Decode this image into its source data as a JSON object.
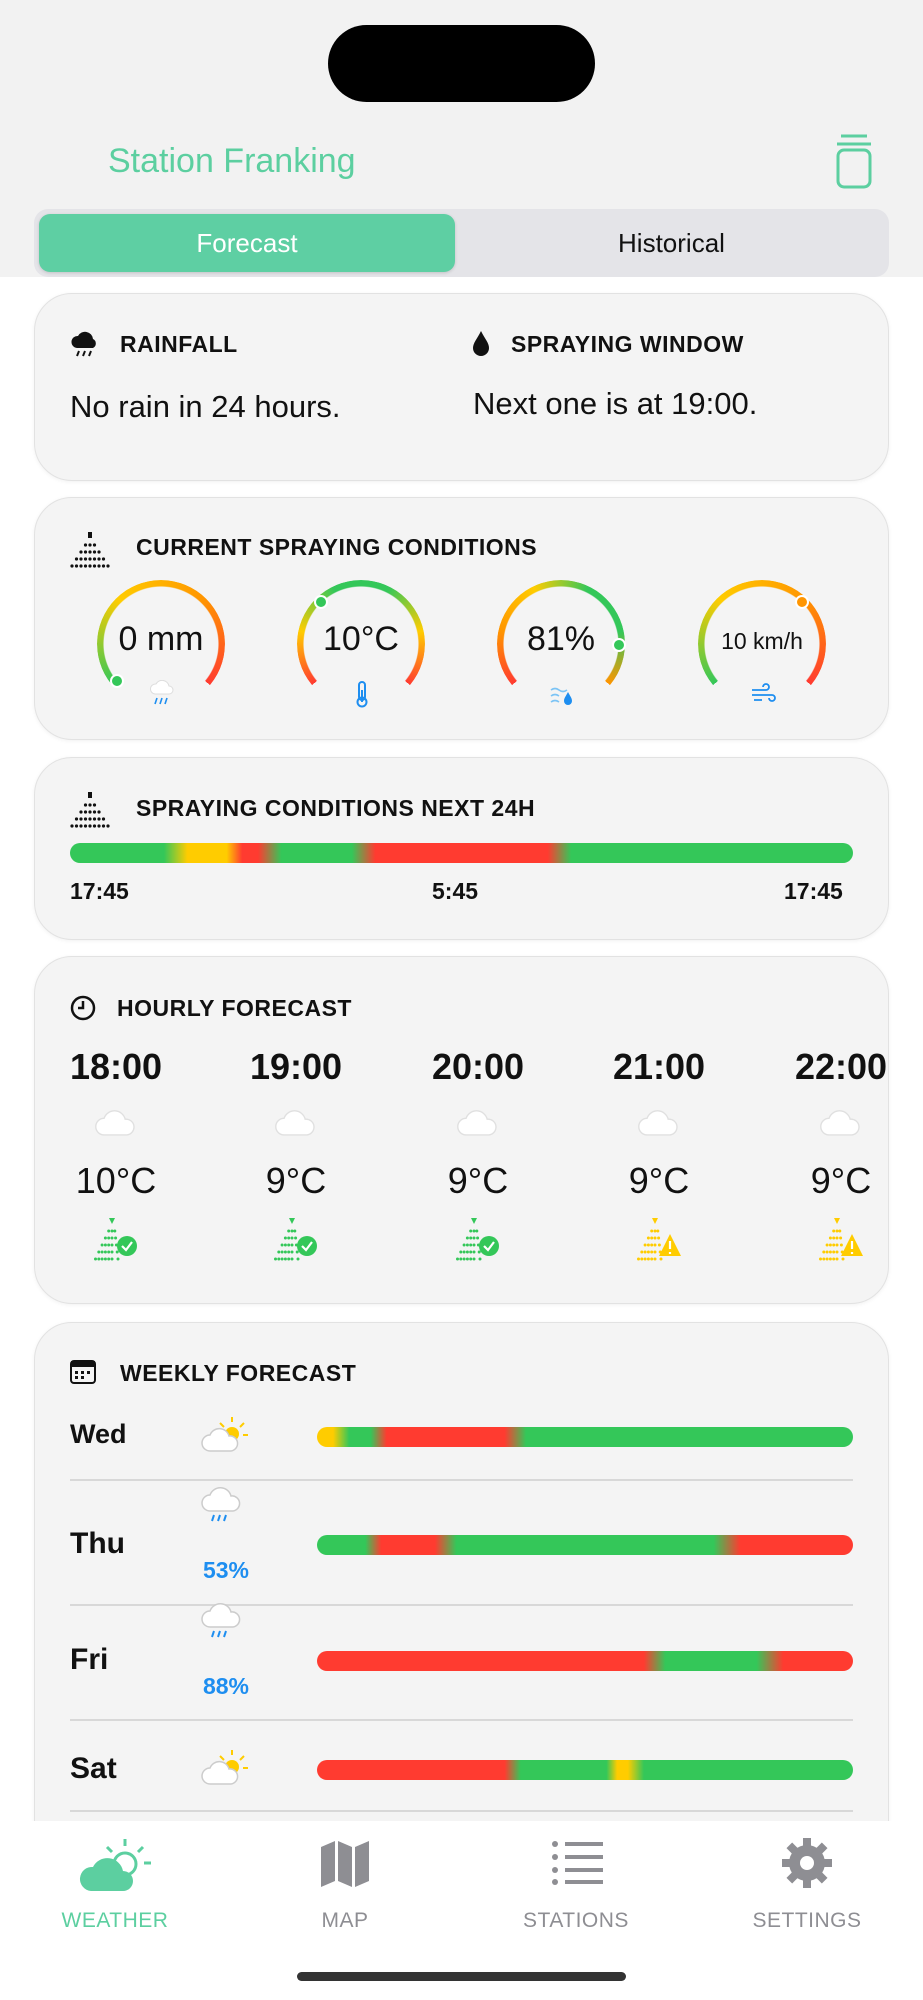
{
  "header": {
    "title": "Station Franking",
    "trash_icon": "trash-icon"
  },
  "segments": {
    "forecast": "Forecast",
    "historical": "Historical",
    "selected": "Forecast"
  },
  "colors": {
    "accent": "#5ecfa3",
    "good": "#34c759",
    "warn": "#ffcc00",
    "caution": "#ff9500",
    "bad": "#ff3b30",
    "rain": "#1e8ef0"
  },
  "rainfall": {
    "label": "RAINFALL",
    "value": "No rain in 24 hours."
  },
  "spraying_window": {
    "label": "SPRAYING WINDOW",
    "value": "Next one is at 19:00."
  },
  "current": {
    "label": "CURRENT SPRAYING CONDITIONS",
    "gauges": [
      {
        "value": "0 mm",
        "icon": "rain-icon",
        "level": 0.0,
        "colors": [
          "#34c759",
          "#ffcc00",
          "#ff9500",
          "#ff3b30"
        ]
      },
      {
        "value": "10°C",
        "icon": "thermometer-icon",
        "level": 0.33,
        "colors": [
          "#ff3b30",
          "#ffcc00",
          "#34c759",
          "#34c759",
          "#ffcc00",
          "#ff3b30"
        ]
      },
      {
        "value": "81%",
        "icon": "humidity-icon",
        "level": 0.85,
        "colors": [
          "#ff3b30",
          "#ff9500",
          "#ffcc00",
          "#34c759",
          "#34c759",
          "#ff9500"
        ]
      },
      {
        "value": "10 km/h",
        "icon": "wind-icon",
        "level": 0.67,
        "colors": [
          "#34c759",
          "#ffcc00",
          "#ff9500",
          "#ff3b30"
        ]
      }
    ]
  },
  "next24": {
    "label": "SPRAYING CONDITIONS NEXT 24H",
    "start": "17:45",
    "middle": "5:45",
    "end": "17:45",
    "segments": [
      [
        "good",
        0,
        12
      ],
      [
        "warn",
        15,
        20
      ],
      [
        "bad",
        22,
        24
      ],
      [
        "good",
        27,
        36
      ],
      [
        "bad",
        39,
        61
      ],
      [
        "good",
        64,
        100
      ]
    ]
  },
  "hourly": {
    "label": "HOURLY FORECAST",
    "items": [
      {
        "time": "18:00",
        "temp": "10°C",
        "weather": "cloud-icon",
        "status": "good"
      },
      {
        "time": "19:00",
        "temp": "9°C",
        "weather": "cloud-icon",
        "status": "good"
      },
      {
        "time": "20:00",
        "temp": "9°C",
        "weather": "cloud-icon",
        "status": "good"
      },
      {
        "time": "21:00",
        "temp": "9°C",
        "weather": "cloud-icon",
        "status": "warn"
      },
      {
        "time": "22:00",
        "temp": "9°C",
        "weather": "cloud-icon",
        "status": "warn"
      }
    ]
  },
  "weekly": {
    "label": "WEEKLY FORECAST",
    "days": [
      {
        "day": "Wed",
        "weather": "partly-sunny-icon",
        "precip": "",
        "segments": [
          [
            "warn",
            0,
            3
          ],
          [
            "good",
            6,
            10
          ],
          [
            "bad",
            13,
            35
          ],
          [
            "good",
            39,
            100
          ]
        ]
      },
      {
        "day": "Thu",
        "weather": "rain-cloud-icon",
        "precip": "53%",
        "segments": [
          [
            "good",
            0,
            9
          ],
          [
            "bad",
            12,
            22
          ],
          [
            "good",
            26,
            74
          ],
          [
            "bad",
            79,
            100
          ]
        ]
      },
      {
        "day": "Fri",
        "weather": "rain-cloud-icon",
        "precip": "88%",
        "segments": [
          [
            "bad",
            0,
            61
          ],
          [
            "good",
            65,
            82
          ],
          [
            "bad",
            87,
            100
          ]
        ]
      },
      {
        "day": "Sat",
        "weather": "partly-sunny-icon",
        "precip": "",
        "segments": [
          [
            "bad",
            0,
            35
          ],
          [
            "good",
            38,
            54
          ],
          [
            "warn",
            56,
            58
          ],
          [
            "good",
            61,
            100
          ]
        ]
      }
    ]
  },
  "tabs": [
    {
      "label": "WEATHER",
      "active": true
    },
    {
      "label": "MAP"
    },
    {
      "label": "STATIONS"
    },
    {
      "label": "SETTINGS"
    }
  ]
}
